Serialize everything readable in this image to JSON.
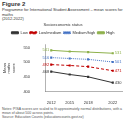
{
  "chart_data": {
    "type": "line",
    "title": "Figure 2",
    "subtitle": "Programme for International Student Assessment – mean scores for maths\n(2012-2022)",
    "ylabel": "Mean\nmaths\nscore",
    "note": "Notes: PISA scores are scaled to fit approximately normal distributions, with a mean of about 500 across points.\nSource: Education Counts (educationcounts.govt.nz)",
    "legend_title": "Socioeconomic status",
    "legend": "top",
    "grid": false,
    "data_labels": true,
    "x": [
      2012,
      2015,
      2018,
      2022
    ],
    "xlim": [
      2011,
      2023.5
    ],
    "xticks": [
      2012,
      2015,
      2018,
      2022
    ],
    "ylim": [
      400,
      560
    ],
    "yticks": [
      400,
      450,
      500,
      550
    ],
    "series": [
      {
        "name": "High",
        "color": "#8db04a",
        "line_style": "solid",
        "marker": "square",
        "values": [
          541,
          537,
          535,
          531
        ],
        "value_labels": [
          "541",
          null,
          null,
          "531"
        ]
      },
      {
        "name": "Medium/high",
        "color": "#4472c4",
        "line_style": "dotted",
        "marker": "square",
        "values": [
          516,
          513,
          510,
          501
        ],
        "value_labels": [
          "516",
          null,
          null,
          "501"
        ]
      },
      {
        "name": "Low/medium",
        "color": "#c00000",
        "line_style": "dashed",
        "marker": "square",
        "values": [
          492,
          489,
          485,
          471
        ],
        "value_labels": [
          "492",
          null,
          null,
          "471"
        ]
      },
      {
        "name": "Low",
        "color": "#333333",
        "line_style": "solid",
        "marker": "square",
        "values": [
          468,
          458,
          450,
          430
        ],
        "value_labels": [
          "468",
          null,
          null,
          "430"
        ]
      }
    ]
  }
}
